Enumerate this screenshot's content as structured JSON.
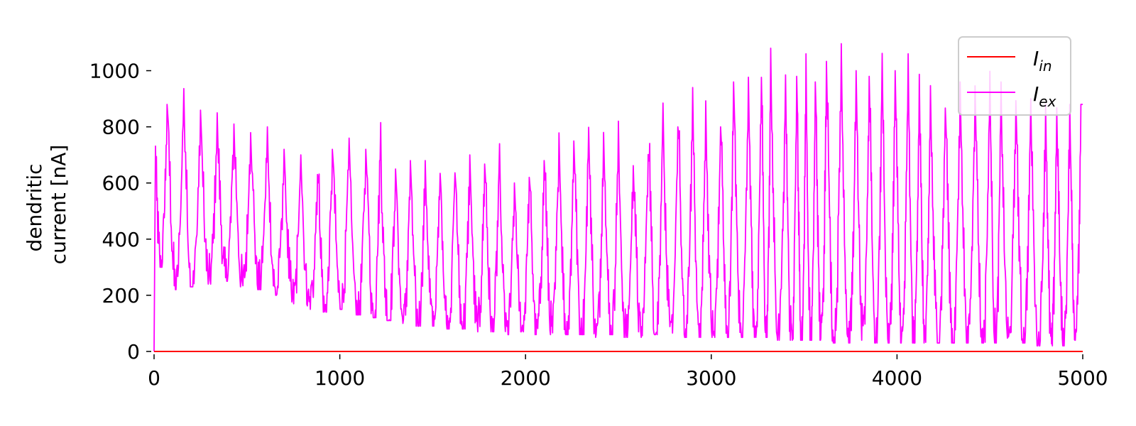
{
  "chart_data": {
    "type": "line",
    "ylabel_lines": [
      "dendritic",
      "current [nA]"
    ],
    "xlim": [
      0,
      5000
    ],
    "ylim": [
      0,
      1100
    ],
    "x_ticks": [
      0,
      1000,
      2000,
      3000,
      4000,
      5000
    ],
    "x_tick_labels": [
      "0",
      "1000",
      "2000",
      "3000",
      "4000",
      "5000"
    ],
    "y_ticks": [
      0,
      200,
      400,
      600,
      800,
      1000
    ],
    "y_tick_labels": [
      "0",
      "200",
      "400",
      "600",
      "800",
      "1000"
    ],
    "grid": false,
    "legend_position": "top-right",
    "series": [
      {
        "name": "I_in",
        "legend_main": "I",
        "legend_sub": "in",
        "color": "#ff0000",
        "x": [
          0,
          5000
        ],
        "y": [
          0,
          0
        ]
      },
      {
        "name": "I_ex",
        "legend_main": "I",
        "legend_sub": "ex",
        "color": "#ff00ff",
        "description_of_values": "oscillating dendritic current; each period listed as [x, peak, trough]",
        "x_start": 0,
        "x_end": 5000,
        "y_start": 0,
        "y_end": 880,
        "periods": [
          [
            70,
            880,
            300
          ],
          [
            160,
            950,
            220
          ],
          [
            250,
            860,
            230
          ],
          [
            340,
            850,
            240
          ],
          [
            430,
            810,
            250
          ],
          [
            520,
            800,
            230
          ],
          [
            610,
            800,
            220
          ],
          [
            700,
            720,
            200
          ],
          [
            790,
            700,
            170
          ],
          [
            880,
            640,
            150
          ],
          [
            960,
            720,
            140
          ],
          [
            1050,
            760,
            150
          ],
          [
            1140,
            720,
            130
          ],
          [
            1220,
            820,
            120
          ],
          [
            1300,
            650,
            110
          ],
          [
            1380,
            680,
            100
          ],
          [
            1460,
            680,
            90
          ],
          [
            1540,
            660,
            90
          ],
          [
            1620,
            660,
            80
          ],
          [
            1700,
            700,
            80
          ],
          [
            1780,
            680,
            70
          ],
          [
            1860,
            740,
            70
          ],
          [
            1940,
            600,
            60
          ],
          [
            2020,
            620,
            70
          ],
          [
            2100,
            680,
            60
          ],
          [
            2180,
            780,
            60
          ],
          [
            2260,
            760,
            60
          ],
          [
            2340,
            820,
            60
          ],
          [
            2420,
            780,
            50
          ],
          [
            2500,
            820,
            60
          ],
          [
            2580,
            680,
            50
          ],
          [
            2660,
            720,
            50
          ],
          [
            2740,
            900,
            60
          ],
          [
            2820,
            800,
            50
          ],
          [
            2900,
            940,
            50
          ],
          [
            2970,
            900,
            50
          ],
          [
            3050,
            800,
            50
          ],
          [
            3120,
            960,
            50
          ],
          [
            3200,
            1000,
            50
          ],
          [
            3270,
            980,
            50
          ],
          [
            3320,
            1080,
            50
          ],
          [
            3400,
            1000,
            40
          ],
          [
            3460,
            980,
            40
          ],
          [
            3510,
            1060,
            40
          ],
          [
            3560,
            960,
            40
          ],
          [
            3620,
            1060,
            40
          ],
          [
            3700,
            1100,
            30
          ],
          [
            3780,
            1000,
            30
          ],
          [
            3850,
            980,
            40
          ],
          [
            3920,
            1080,
            30
          ],
          [
            3990,
            1000,
            30
          ],
          [
            4060,
            1060,
            30
          ],
          [
            4120,
            1000,
            30
          ],
          [
            4180,
            960,
            30
          ],
          [
            4260,
            880,
            30
          ],
          [
            4340,
            960,
            30
          ],
          [
            4420,
            960,
            30
          ],
          [
            4500,
            1000,
            30
          ],
          [
            4560,
            960,
            30
          ],
          [
            4640,
            920,
            30
          ],
          [
            4720,
            900,
            30
          ],
          [
            4800,
            880,
            20
          ],
          [
            4860,
            880,
            20
          ],
          [
            4930,
            880,
            20
          ],
          [
            4990,
            880,
            40
          ]
        ]
      }
    ]
  }
}
